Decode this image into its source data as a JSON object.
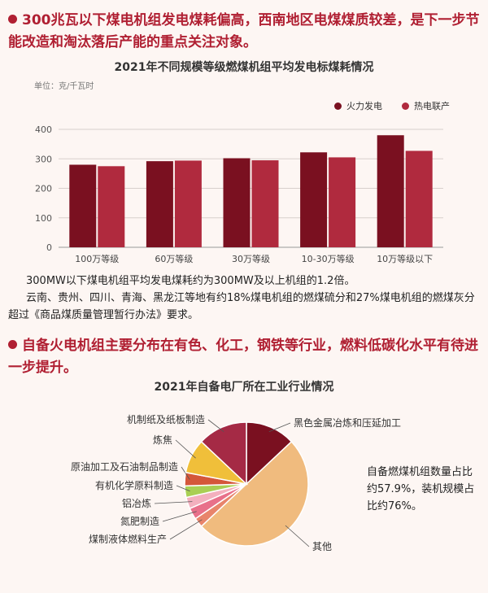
{
  "heading1": "300兆瓦以下煤电机组发电煤耗偏高，西南地区电煤煤质较差，是下一步节能改造和淘汰落后产能的重点关注对象。",
  "paragraph1": "300MW以下煤电机组平均发电煤耗约为300MW及以上机组的1.2倍。",
  "paragraph2": "云南、贵州、四川、青海、黑龙江等地有约18%煤电机组的燃煤硫分和27%煤电机组的燃煤灰分超过《商品煤质量管理暂行办法》要求。",
  "heading2": "自备火电机组主要分布在有色、化工，钢铁等行业，燃料低碳化水平有待进一步提升。",
  "note": "自备燃煤机组数量占比约57.9%，装机规模占比约76%。",
  "colors": {
    "accent": "#b01f32",
    "series1": "#7a1020",
    "series2": "#b02a3e"
  },
  "chart_data": [
    {
      "type": "bar",
      "title": "2021年不同规模等级燃煤机组平均发电标煤耗情况",
      "unit_label": "单位：克/千瓦时",
      "categories": [
        "100万等级",
        "60万等级",
        "30万等级",
        "10-30万等级",
        "10万等级以下"
      ],
      "series": [
        {
          "name": "火力发电",
          "values": [
            280,
            292,
            302,
            322,
            380
          ]
        },
        {
          "name": "热电联产",
          "values": [
            275,
            294,
            295,
            305,
            327
          ]
        }
      ],
      "ylim": [
        0,
        400
      ],
      "yticks": [
        0,
        100,
        200,
        300,
        400
      ],
      "grid": true,
      "legend": "top-right"
    },
    {
      "type": "pie",
      "title": "2021年自备电厂所在工业行业情况",
      "slices": [
        {
          "label": "黑色金属冶炼和压延加工",
          "value": 13,
          "color": "#7a1020"
        },
        {
          "label": "其他",
          "value": 50,
          "color": "#f0bb7e"
        },
        {
          "label": "煤制液体燃料生产",
          "value": 2.5,
          "color": "#e8846b"
        },
        {
          "label": "氮肥制造",
          "value": 3,
          "color": "#e8708a"
        },
        {
          "label": "铝冶炼",
          "value": 3,
          "color": "#f3b0be"
        },
        {
          "label": "有机化学原料制造",
          "value": 3,
          "color": "#a9cf54"
        },
        {
          "label": "原油加工及石油制品制造",
          "value": 3.5,
          "color": "#d4573a"
        },
        {
          "label": "炼焦",
          "value": 9,
          "color": "#f0bf3a"
        },
        {
          "label": "机制纸及纸板制造",
          "value": 13,
          "color": "#a52a45"
        }
      ]
    }
  ]
}
